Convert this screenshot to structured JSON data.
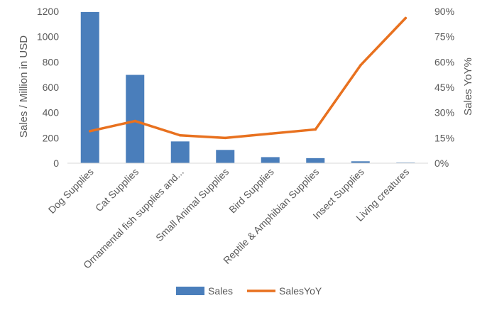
{
  "chart_data": {
    "type": "bar",
    "categories": [
      "Dog Supplies",
      "Cat Supplies",
      "Ornamental fish supplies and...",
      "Small Animal Supplies",
      "Bird Supplies",
      "Reptile & Amphibian Supplies",
      "Insect Supplies",
      "Living creatures"
    ],
    "series": [
      {
        "name": "Sales",
        "type": "bar",
        "axis": "left",
        "color": "#4a7ebb",
        "values": [
          1195,
          698,
          172,
          105,
          48,
          40,
          15,
          5
        ]
      },
      {
        "name": "SalesYoY",
        "type": "line",
        "axis": "right",
        "color": "#e8711f",
        "values": [
          19,
          25,
          16.5,
          15,
          17.5,
          20,
          58,
          86
        ]
      }
    ],
    "ylabel": "Sales / Million in USD",
    "ylabel_right": "Sales YoY%",
    "ylim": [
      0,
      1200
    ],
    "ylim_right": [
      0,
      90
    ],
    "yticks": [
      "0",
      "200",
      "400",
      "600",
      "800",
      "1000",
      "1200"
    ],
    "yticks_right": [
      "0%",
      "15%",
      "30%",
      "45%",
      "60%",
      "75%",
      "90%"
    ],
    "grid": false,
    "legend": "bottom"
  }
}
